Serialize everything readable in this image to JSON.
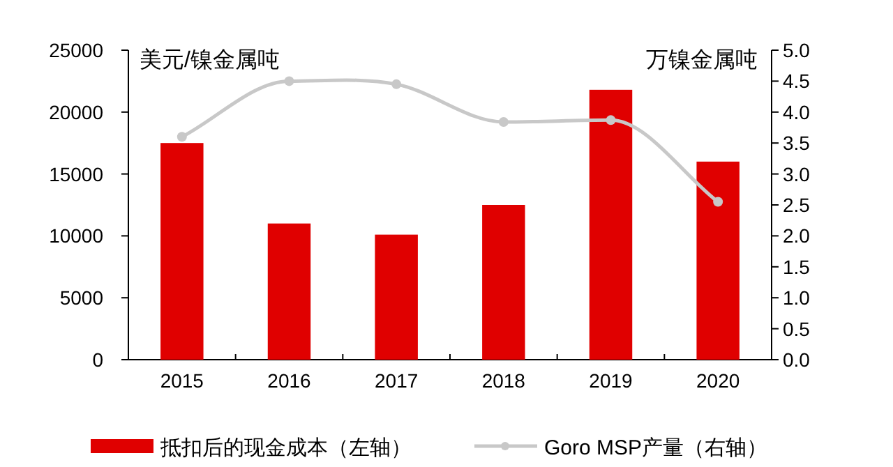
{
  "chart_data": {
    "type": "bar",
    "ylabel": "美元/镍金属吨",
    "y2label": "万镍金属吨",
    "categories": [
      "2015",
      "2016",
      "2017",
      "2018",
      "2019",
      "2020"
    ],
    "series": [
      {
        "name": "抵扣后的现金成本（左轴）",
        "color": "#e00000",
        "values": [
          17500,
          11000,
          10100,
          12500,
          21800,
          16000
        ]
      },
      {
        "name": "Goro MSP产量（右轴）",
        "type": "line",
        "axis": "y2",
        "color": "#c8c8c8",
        "marker": "circle",
        "values": [
          3.6,
          4.5,
          4.45,
          3.84,
          3.87,
          2.55
        ]
      }
    ],
    "ylim": [
      0,
      25000
    ],
    "yticks": [
      0,
      5000,
      10000,
      15000,
      20000,
      25000
    ],
    "y2lim": [
      0,
      5.0
    ],
    "y2ticks": [
      {
        "value": 0,
        "label": "0.0"
      },
      {
        "value": 0.5,
        "label": "0.5"
      },
      {
        "value": 1,
        "label": "1.0"
      },
      {
        "value": 1.5,
        "label": "1.5"
      },
      {
        "value": 2,
        "label": "2.0"
      },
      {
        "value": 2.5,
        "label": "2.5"
      },
      {
        "value": 3,
        "label": "3.0"
      },
      {
        "value": 3.5,
        "label": "3.5"
      },
      {
        "value": 4,
        "label": "4.0"
      },
      {
        "value": 4.5,
        "label": "4.5"
      },
      {
        "value": 5,
        "label": "5.0"
      }
    ],
    "grid": false,
    "legend": "bottom"
  }
}
